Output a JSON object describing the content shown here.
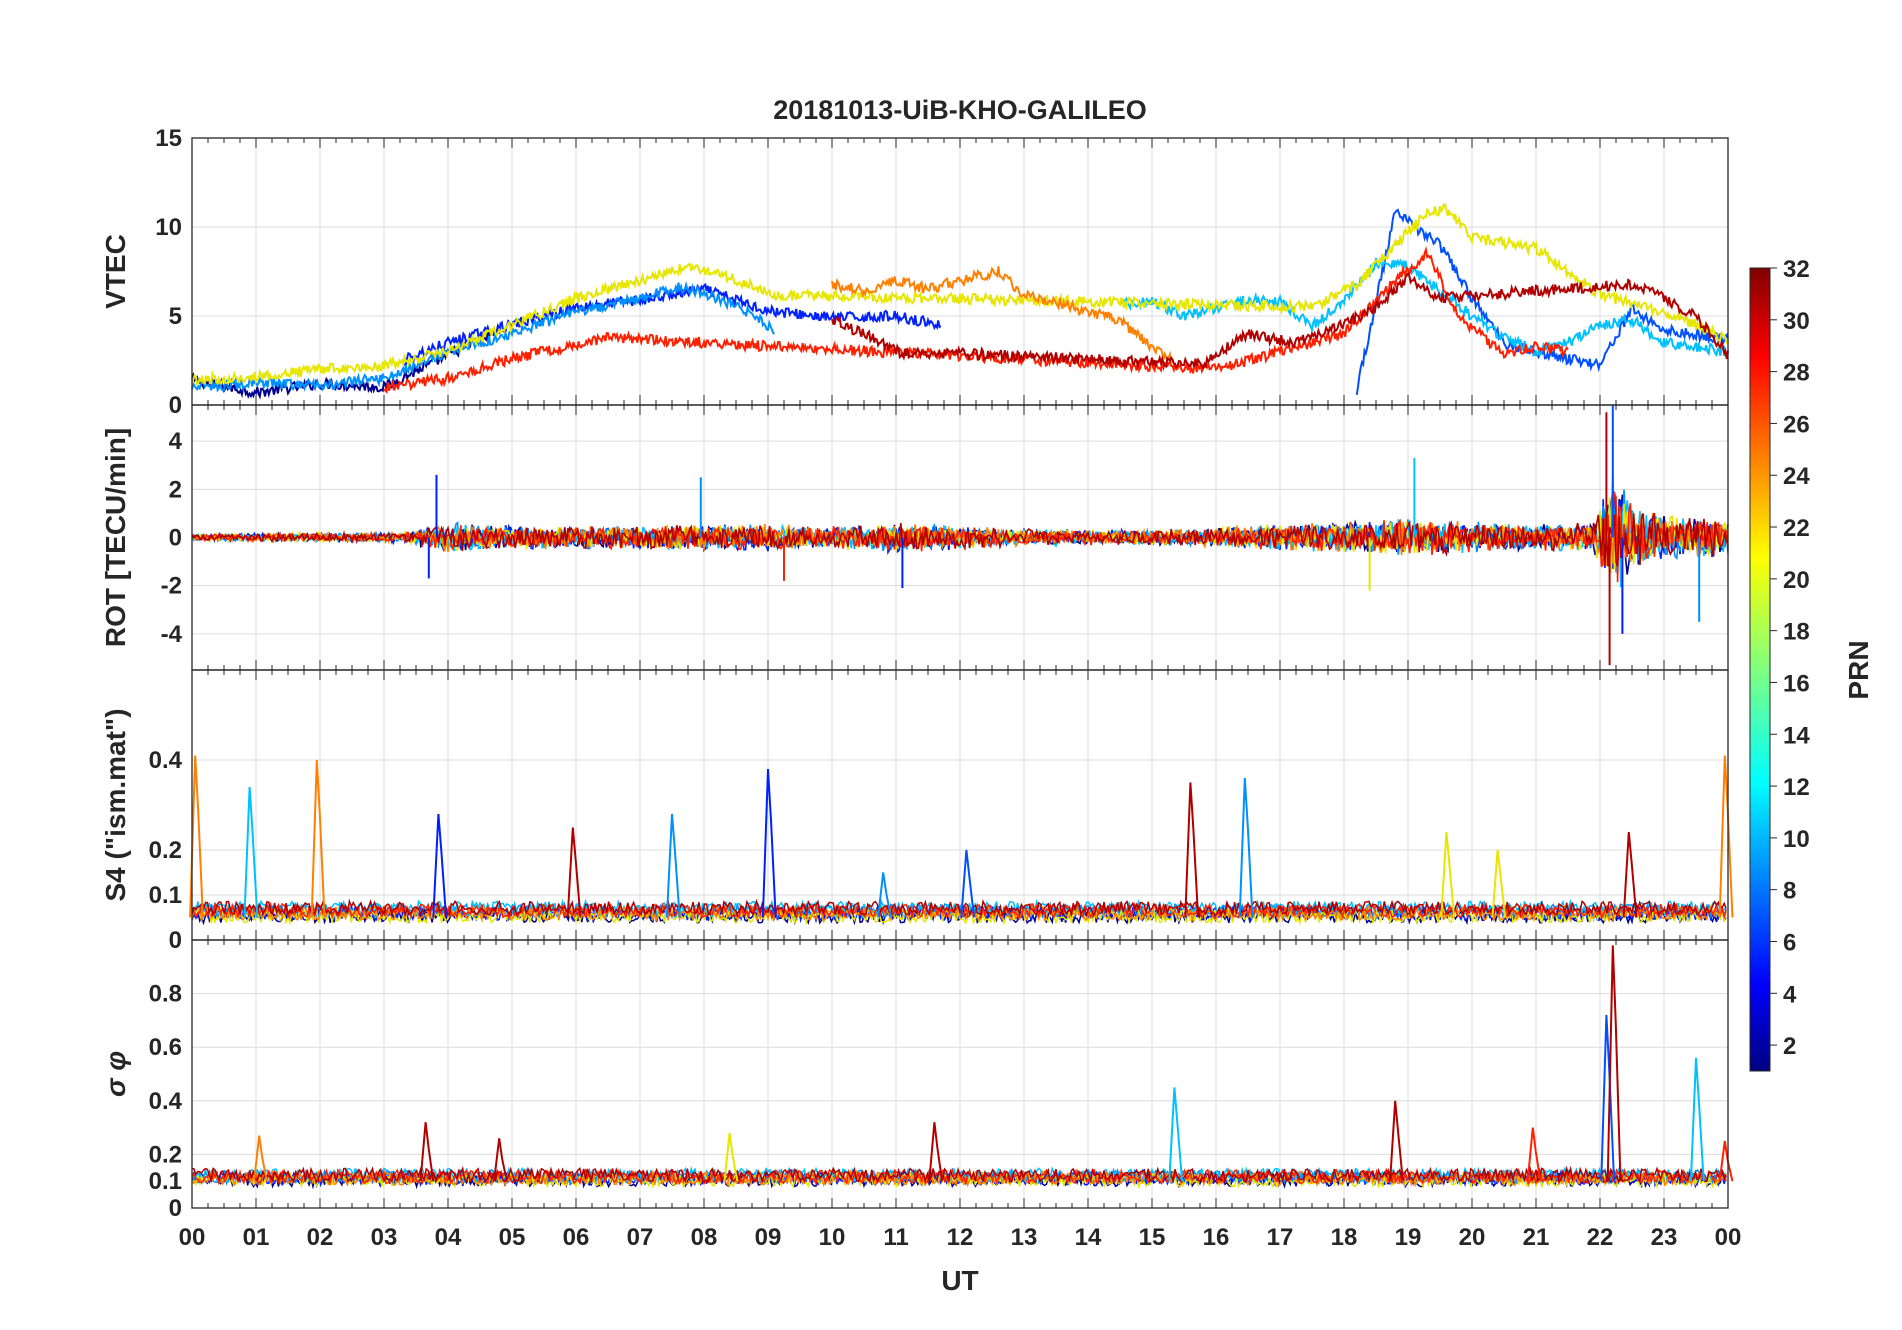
{
  "chart_data": {
    "type": "line",
    "title": "20181013-UiB-KHO-GALILEO",
    "xlabel": "UT",
    "x_tick_labels": [
      "00",
      "01",
      "02",
      "03",
      "04",
      "05",
      "06",
      "07",
      "08",
      "09",
      "10",
      "11",
      "12",
      "13",
      "14",
      "15",
      "16",
      "17",
      "18",
      "19",
      "20",
      "21",
      "22",
      "23",
      "00"
    ],
    "xlim_hours": [
      0,
      24
    ],
    "grid": true,
    "colorbar": {
      "label": "PRN",
      "range": [
        1,
        32
      ],
      "ticks": [
        "2",
        "4",
        "6",
        "8",
        "10",
        "12",
        "14",
        "16",
        "18",
        "20",
        "22",
        "24",
        "26",
        "28",
        "30",
        "32"
      ],
      "colormap": "jet",
      "position": "right"
    },
    "panels": [
      {
        "id": "vtec",
        "ylabel": "VTEC",
        "ylim": [
          0,
          15
        ],
        "yticks": [
          "0",
          "5",
          "10",
          "15"
        ],
        "yticks_values": [
          0,
          5,
          10,
          15
        ],
        "series": [
          {
            "prn": 2,
            "color": "#000090",
            "x": [
              0,
              1,
              2,
              3,
              4,
              4.8
            ],
            "y": [
              1.4,
              0.7,
              1.2,
              1.0,
              2.8,
              4.2
            ]
          },
          {
            "prn": 5,
            "color": "#0020ff",
            "x": [
              3.3,
              4,
              5,
              6,
              7,
              8,
              9,
              10,
              11,
              11.7
            ],
            "y": [
              2.5,
              3.5,
              4.5,
              5.5,
              5.9,
              6.5,
              5.3,
              4.9,
              5.0,
              4.5
            ]
          },
          {
            "prn": 7,
            "color": "#0050ff",
            "x": [
              18.2,
              18.8,
              19.5,
              20,
              20.5,
              21,
              21.5,
              22,
              22.5,
              23,
              24
            ],
            "y": [
              0.8,
              10.8,
              9.0,
              6.0,
              3.5,
              3.0,
              2.6,
              2.3,
              5.4,
              4.2,
              3.7
            ]
          },
          {
            "prn": 9,
            "color": "#0090ff",
            "x": [
              0,
              1,
              2,
              3,
              4,
              5,
              6,
              7,
              7.6,
              8,
              8.6,
              9.1
            ],
            "y": [
              1.0,
              1.2,
              1.1,
              1.5,
              3.0,
              4.0,
              5.2,
              6.0,
              6.6,
              6.3,
              5.4,
              4.2
            ]
          },
          {
            "prn": 11,
            "color": "#00c0ff",
            "x": [
              14.5,
              15,
              15.5,
              16,
              16.5,
              17,
              17.5,
              18,
              18.5,
              19,
              20,
              20.5,
              21,
              21.5,
              22,
              22.5,
              23,
              24
            ],
            "y": [
              5.7,
              5.8,
              5.0,
              5.5,
              5.9,
              5.8,
              4.4,
              5.9,
              8.0,
              7.8,
              5.0,
              3.8,
              3.0,
              3.5,
              4.5,
              4.8,
              3.5,
              3.0
            ]
          },
          {
            "prn": 20,
            "color": "#e6e600",
            "x": [
              0,
              1,
              2,
              3,
              4,
              5,
              6,
              7,
              7.8,
              8.5,
              9.1,
              17.5,
              18.2,
              19.3,
              19.6,
              20,
              21,
              22,
              22.8,
              23.5,
              24
            ],
            "y": [
              1.4,
              1.6,
              2.0,
              2.2,
              3.0,
              4.5,
              6.0,
              7.0,
              7.8,
              7.0,
              6.2,
              5.5,
              6.8,
              10.8,
              11.0,
              9.4,
              8.8,
              6.2,
              5.4,
              4.5,
              3.6
            ]
          },
          {
            "prn": 24,
            "color": "#ff8000",
            "x": [
              10,
              10.5,
              11,
              11.5,
              12,
              12.6,
              13,
              13.5,
              14,
              14.5,
              15,
              15.3
            ],
            "y": [
              6.8,
              6.4,
              7.0,
              6.5,
              7.0,
              7.5,
              6.2,
              5.8,
              5.2,
              4.8,
              3.2,
              2.5
            ]
          },
          {
            "prn": 28,
            "color": "#ff2000",
            "x": [
              3,
              4,
              5,
              6,
              6.5,
              7.5,
              16,
              17,
              18,
              18.8,
              19.3,
              19.8,
              20.5,
              21,
              21.5
            ],
            "y": [
              1.0,
              1.5,
              2.6,
              3.4,
              3.8,
              3.6,
              2.0,
              3.0,
              4.0,
              7.0,
              8.5,
              5.0,
              2.8,
              3.3,
              3.0
            ]
          },
          {
            "prn": 31,
            "color": "#b00000",
            "x": [
              10,
              10.5,
              11,
              11.5,
              12,
              15.8,
              16.5,
              17.2,
              18,
              18.5,
              19,
              19.5,
              22.5,
              23,
              23.5,
              24
            ],
            "y": [
              4.8,
              4.0,
              3.0,
              2.8,
              2.9,
              2.3,
              4.0,
              3.5,
              4.5,
              5.5,
              7.2,
              6.0,
              6.8,
              6.0,
              5.0,
              2.8
            ]
          }
        ]
      },
      {
        "id": "rot",
        "ylabel": "ROT [TECU/min]",
        "ylim": [
          -5.5,
          5.5
        ],
        "yticks": [
          "-4",
          "-2",
          "0",
          "2",
          "4"
        ],
        "yticks_values": [
          -4,
          -2,
          0,
          2,
          4
        ],
        "noise_profile": {
          "hours": [
            0,
            3.3,
            4,
            5,
            6,
            7,
            8,
            9,
            10,
            11,
            12,
            13,
            14,
            15,
            16,
            17,
            18,
            19,
            20,
            21,
            21.9,
            22.2,
            22.6,
            23,
            24
          ],
          "amplitude": [
            0.15,
            0.2,
            0.6,
            0.45,
            0.45,
            0.5,
            0.5,
            0.55,
            0.45,
            0.6,
            0.45,
            0.35,
            0.3,
            0.3,
            0.4,
            0.55,
            0.6,
            0.8,
            0.6,
            0.55,
            0.6,
            2.5,
            1.2,
            0.9,
            0.8
          ]
        },
        "spikes": [
          {
            "x": 3.82,
            "y": 2.6,
            "color": "#0020ff"
          },
          {
            "x": 3.7,
            "y": -1.7,
            "color": "#0020ff"
          },
          {
            "x": 7.95,
            "y": 2.5,
            "color": "#0090ff"
          },
          {
            "x": 11.1,
            "y": -2.1,
            "color": "#0020ff"
          },
          {
            "x": 9.25,
            "y": -1.8,
            "color": "#ff2000"
          },
          {
            "x": 19.1,
            "y": 3.3,
            "color": "#00c0ff"
          },
          {
            "x": 18.4,
            "y": -2.2,
            "color": "#e6e600"
          },
          {
            "x": 22.1,
            "y": 5.2,
            "color": "#b00000"
          },
          {
            "x": 22.15,
            "y": -5.3,
            "color": "#b00000"
          },
          {
            "x": 22.2,
            "y": 5.5,
            "color": "#0050ff"
          },
          {
            "x": 22.35,
            "y": -4.0,
            "color": "#0020ff"
          },
          {
            "x": 23.55,
            "y": -3.5,
            "color": "#0090ff"
          }
        ]
      },
      {
        "id": "s4",
        "ylabel": "S4 (\"ism.mat\")",
        "ylim": [
          0,
          0.6
        ],
        "yticks": [
          "0",
          "0.1",
          "0.2",
          "0.4"
        ],
        "yticks_values": [
          0,
          0.1,
          0.2,
          0.4
        ],
        "baseline": 0.05,
        "noise_amplitude": 0.015,
        "spikes": [
          {
            "x": 0.05,
            "y": 0.41,
            "color": "#ff8000"
          },
          {
            "x": 0.9,
            "y": 0.34,
            "color": "#00c0ff"
          },
          {
            "x": 1.95,
            "y": 0.4,
            "color": "#ff8000"
          },
          {
            "x": 3.85,
            "y": 0.28,
            "color": "#0020ff"
          },
          {
            "x": 5.95,
            "y": 0.25,
            "color": "#b00000"
          },
          {
            "x": 7.5,
            "y": 0.28,
            "color": "#0090ff"
          },
          {
            "x": 9.0,
            "y": 0.38,
            "color": "#0020ff"
          },
          {
            "x": 10.8,
            "y": 0.15,
            "color": "#0090ff"
          },
          {
            "x": 12.1,
            "y": 0.2,
            "color": "#0050ff"
          },
          {
            "x": 15.6,
            "y": 0.35,
            "color": "#b00000"
          },
          {
            "x": 16.45,
            "y": 0.36,
            "color": "#0090ff"
          },
          {
            "x": 19.6,
            "y": 0.24,
            "color": "#e6e600"
          },
          {
            "x": 20.4,
            "y": 0.2,
            "color": "#e6e600"
          },
          {
            "x": 22.45,
            "y": 0.24,
            "color": "#b00000"
          },
          {
            "x": 23.95,
            "y": 0.41,
            "color": "#ff8000"
          }
        ]
      },
      {
        "id": "sigma_phi",
        "ylabel": "σ φ",
        "ylim": [
          0,
          1.0
        ],
        "yticks": [
          "0",
          "0.1",
          "0.2",
          "0.4",
          "0.6",
          "0.8"
        ],
        "yticks_values": [
          0,
          0.1,
          0.2,
          0.4,
          0.6,
          0.8
        ],
        "baseline": 0.1,
        "noise_amplitude": 0.025,
        "spikes": [
          {
            "x": 3.65,
            "y": 0.32,
            "color": "#b00000"
          },
          {
            "x": 1.05,
            "y": 0.27,
            "color": "#ff8000"
          },
          {
            "x": 4.8,
            "y": 0.26,
            "color": "#b00000"
          },
          {
            "x": 8.4,
            "y": 0.28,
            "color": "#e6e600"
          },
          {
            "x": 11.6,
            "y": 0.32,
            "color": "#b00000"
          },
          {
            "x": 15.35,
            "y": 0.45,
            "color": "#00c0ff"
          },
          {
            "x": 18.8,
            "y": 0.4,
            "color": "#b00000"
          },
          {
            "x": 20.95,
            "y": 0.3,
            "color": "#ff2000"
          },
          {
            "x": 22.1,
            "y": 0.72,
            "color": "#0050ff"
          },
          {
            "x": 22.2,
            "y": 0.98,
            "color": "#b00000"
          },
          {
            "x": 23.5,
            "y": 0.56,
            "color": "#00c0ff"
          },
          {
            "x": 23.95,
            "y": 0.25,
            "color": "#ff2000"
          }
        ]
      }
    ]
  }
}
